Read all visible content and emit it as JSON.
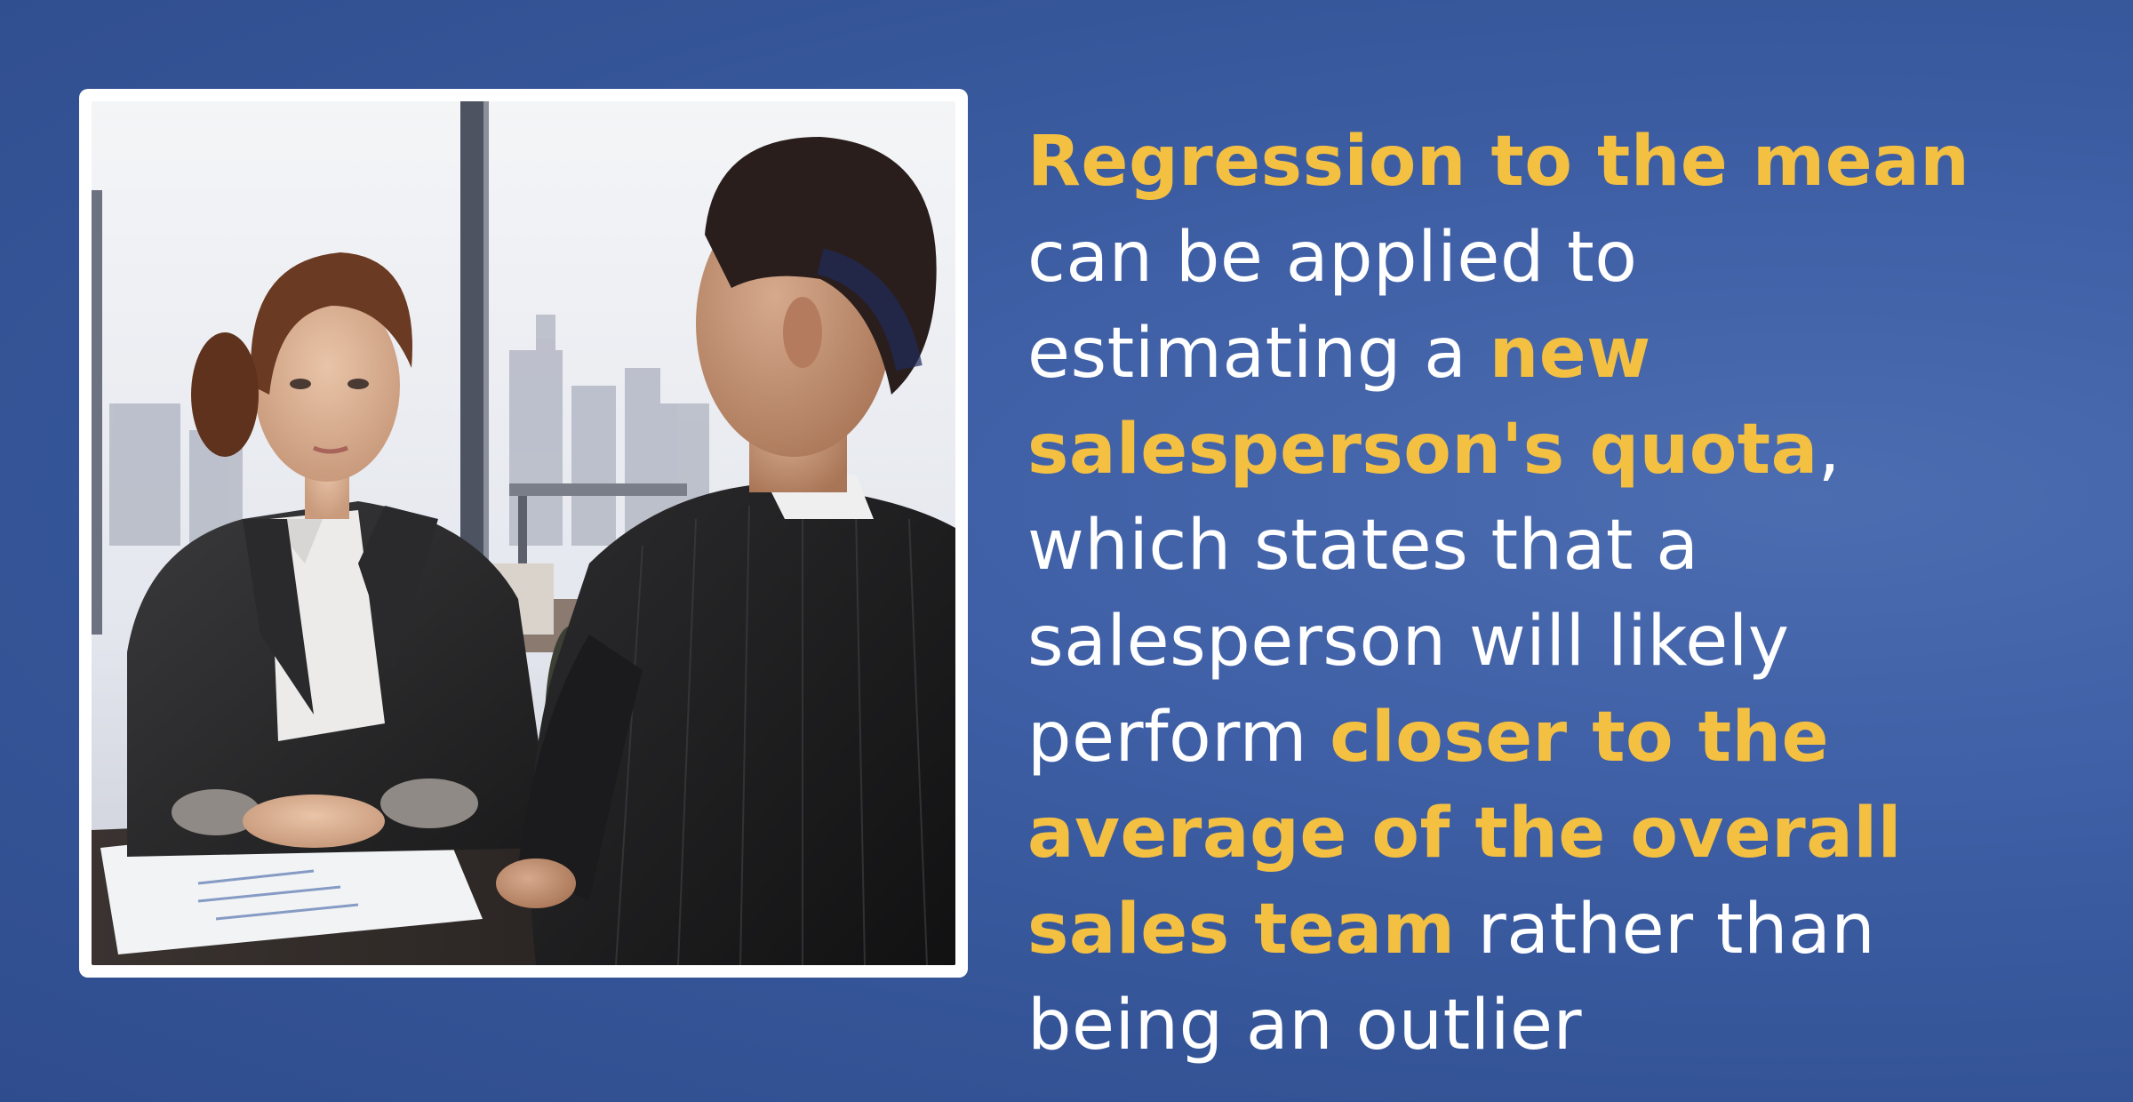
{
  "illustration": {
    "subject": "woman and man in business suits reviewing charts at a desk",
    "icon": "illustration-image"
  },
  "colors": {
    "background": "#3a5aa0",
    "highlight": "#f4c042",
    "text": "#ffffff",
    "frame": "#ffffff"
  },
  "caption": {
    "line1_hl": "Regression to the mean",
    "line2": "can be applied to",
    "line3": "estimating a ",
    "line3_hl": "new",
    "line4_hl": "salesperson's quota",
    "line4_tail": ",",
    "line5": "which states that a",
    "line6": "salesperson will likely",
    "line7": "perform ",
    "line7_hl": "closer to the",
    "line8_hl": "average of the overall",
    "line9_hl": "sales team",
    "line9_tail": " rather than",
    "line10": "being an outlier"
  }
}
